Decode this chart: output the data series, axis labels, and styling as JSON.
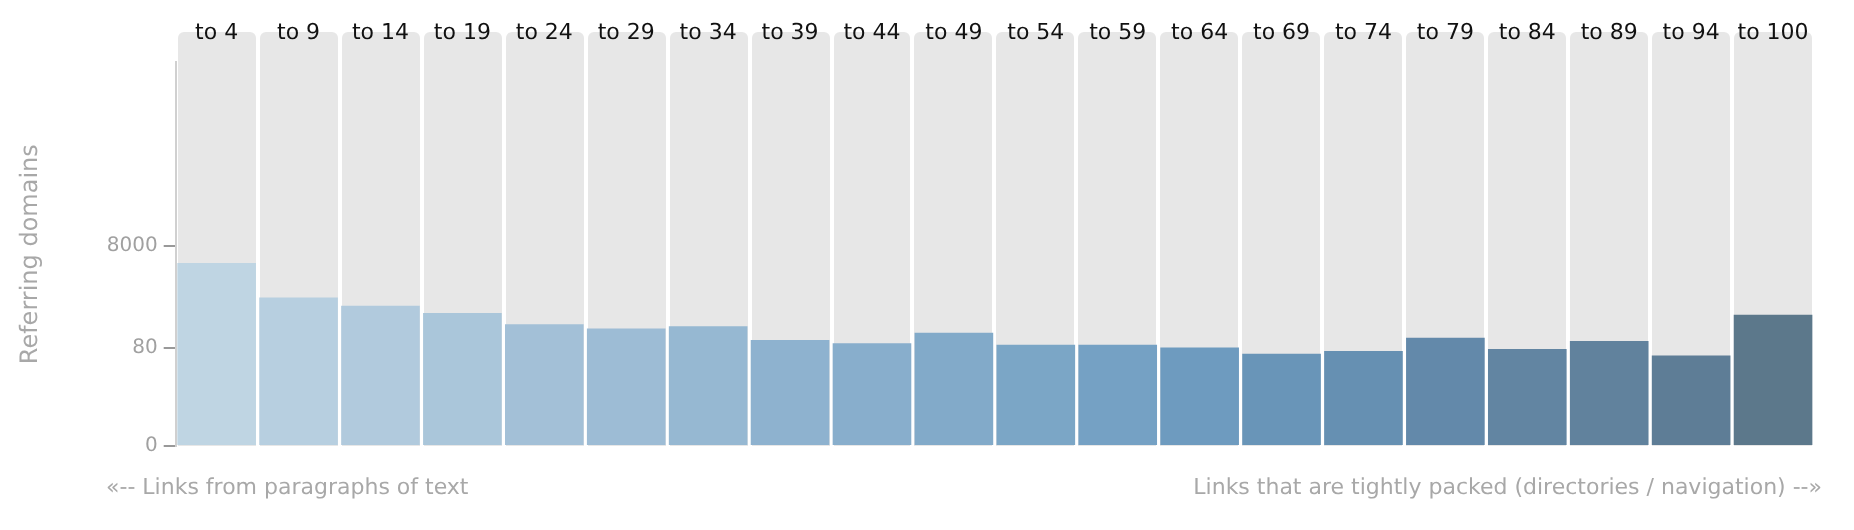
{
  "chart_data": {
    "type": "bar",
    "ylabel": "Referring domains",
    "categories": [
      "to 4",
      "to 9",
      "to 14",
      "to 19",
      "to 24",
      "to 29",
      "to 34",
      "to 39",
      "to 44",
      "to 49",
      "to 54",
      "to 59",
      "to 64",
      "to 69",
      "to 74",
      "to 79",
      "to 84",
      "to 89",
      "to 94",
      "to 100"
    ],
    "values": [
      3700,
      780,
      540,
      390,
      235,
      195,
      215,
      115,
      100,
      160,
      93,
      93,
      82,
      62,
      70,
      128,
      77,
      110,
      57,
      360
    ],
    "colors": [
      "#bfd5e3",
      "#b7cfe0",
      "#b1cadd",
      "#aac6da",
      "#a3c0d7",
      "#9dbcd5",
      "#96b8d2",
      "#8eb2cf",
      "#88aecc",
      "#82aac9",
      "#7ba6c6",
      "#75a1c4",
      "#6e9bbf",
      "#6995b8",
      "#6690b2",
      "#6389aa",
      "#6285a2",
      "#61829d",
      "#5e7d96",
      "#5c788b"
    ],
    "log": "y",
    "ylim": [
      0,
      30000000
    ],
    "yticks": [
      0,
      80,
      8000
    ],
    "grid": false,
    "legend": false,
    "annotations": [
      "«-- Links from paragraphs of text",
      "Links that are tightly packed (directories / navigation) --»"
    ]
  }
}
